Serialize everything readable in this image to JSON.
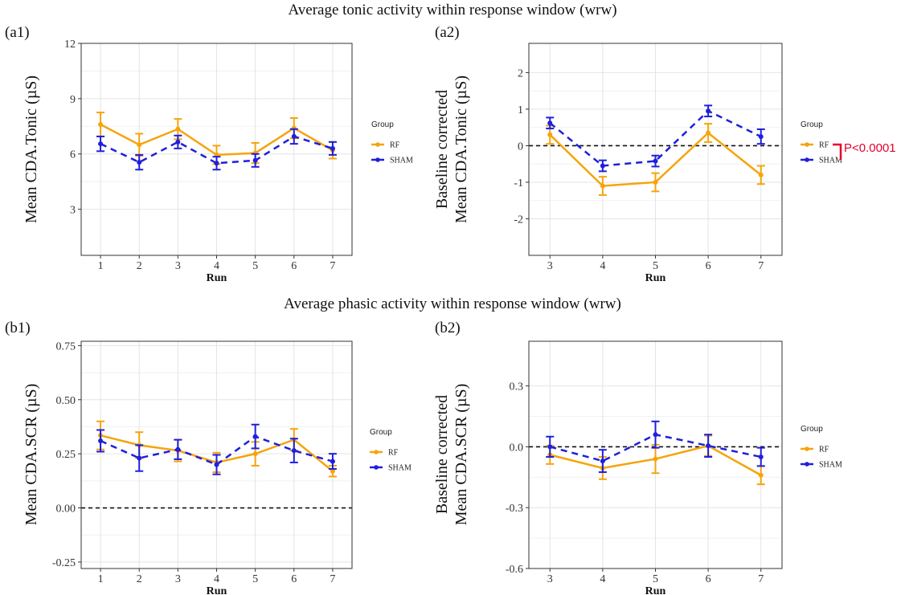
{
  "section_titles": {
    "tonic": "Average tonic activity within response window (wrw)",
    "phasic": "Average phasic activity within response window (wrw)"
  },
  "colors": {
    "RF": "#f5a40c",
    "SHAM": "#1f1fdc",
    "significance": "#e4002b"
  },
  "chart_data": [
    {
      "id": "a1",
      "panel_label": "(a1)",
      "type": "line",
      "xlabel": "Run",
      "ylabel": [
        "Mean CDA.Tonic (µS)"
      ],
      "x": [
        1,
        2,
        3,
        4,
        5,
        6,
        7
      ],
      "xlim": [
        0.5,
        7.5
      ],
      "ylim": [
        0.5,
        12
      ],
      "yticks": [
        3,
        6,
        9,
        12
      ],
      "xticks": [
        1,
        2,
        3,
        4,
        5,
        6,
        7
      ],
      "grid": true,
      "zero_line": false,
      "legend": {
        "title": "Group",
        "entries": [
          "RF",
          "SHAM"
        ],
        "position": "right"
      },
      "series": [
        {
          "name": "RF",
          "style": "solid",
          "values": [
            7.6,
            6.5,
            7.35,
            5.95,
            6.05,
            7.4,
            6.2
          ],
          "errors": [
            0.65,
            0.6,
            0.55,
            0.5,
            0.55,
            0.55,
            0.45
          ]
        },
        {
          "name": "SHAM",
          "style": "dashed",
          "values": [
            6.55,
            5.55,
            6.65,
            5.5,
            5.65,
            6.95,
            6.3
          ],
          "errors": [
            0.4,
            0.4,
            0.35,
            0.35,
            0.35,
            0.4,
            0.35
          ]
        }
      ]
    },
    {
      "id": "a2",
      "panel_label": "(a2)",
      "type": "line",
      "xlabel": "Run",
      "ylabel": [
        "Baseline  corrected",
        "Mean CDA.Tonic (µS)"
      ],
      "x": [
        3,
        4,
        5,
        6,
        7
      ],
      "xlim": [
        2.6,
        7.4
      ],
      "ylim": [
        -3,
        2.8
      ],
      "yticks": [
        -2,
        -1,
        0,
        1,
        2
      ],
      "xticks": [
        3,
        4,
        5,
        6,
        7
      ],
      "grid": true,
      "zero_line": true,
      "legend": {
        "title": "Group",
        "entries": [
          "RF",
          "SHAM"
        ],
        "position": "right"
      },
      "annotation": "P<0.0001",
      "series": [
        {
          "name": "RF",
          "style": "solid",
          "values": [
            0.3,
            -1.1,
            -1.0,
            0.35,
            -0.8
          ],
          "errors": [
            0.25,
            0.25,
            0.25,
            0.25,
            0.25
          ]
        },
        {
          "name": "SHAM",
          "style": "dashed",
          "values": [
            0.62,
            -0.55,
            -0.42,
            0.95,
            0.25
          ],
          "errors": [
            0.15,
            0.15,
            0.15,
            0.15,
            0.2
          ]
        }
      ]
    },
    {
      "id": "b1",
      "panel_label": "(b1)",
      "type": "line",
      "xlabel": "Run",
      "ylabel": [
        "Mean CDA.SCR (µS)"
      ],
      "x": [
        1,
        2,
        3,
        4,
        5,
        6,
        7
      ],
      "xlim": [
        0.5,
        7.5
      ],
      "ylim": [
        -0.28,
        0.77
      ],
      "yticks": [
        -0.25,
        0.0,
        0.25,
        0.5,
        0.75
      ],
      "yticklabels": [
        "-0.25",
        "0.00",
        "0.25",
        "0.50",
        "0.75"
      ],
      "xticks": [
        1,
        2,
        3,
        4,
        5,
        6,
        7
      ],
      "grid": true,
      "zero_line": true,
      "legend": {
        "title": "Group",
        "entries": [
          "RF",
          "SHAM"
        ],
        "position": "right"
      },
      "series": [
        {
          "name": "RF",
          "style": "solid",
          "values": [
            0.335,
            0.29,
            0.265,
            0.21,
            0.25,
            0.315,
            0.17
          ],
          "errors": [
            0.065,
            0.06,
            0.05,
            0.045,
            0.055,
            0.05,
            0.025
          ]
        },
        {
          "name": "SHAM",
          "style": "dashed",
          "values": [
            0.31,
            0.23,
            0.27,
            0.2,
            0.33,
            0.265,
            0.215
          ],
          "errors": [
            0.05,
            0.06,
            0.045,
            0.045,
            0.055,
            0.055,
            0.035
          ]
        }
      ]
    },
    {
      "id": "b2",
      "panel_label": "(b2)",
      "type": "line",
      "xlabel": "Run",
      "ylabel": [
        "Baseline  corrected",
        "Mean CDA.SCR (µS)"
      ],
      "x": [
        3,
        4,
        5,
        6,
        7
      ],
      "xlim": [
        2.6,
        7.4
      ],
      "ylim": [
        -0.6,
        0.52
      ],
      "yticks": [
        -0.6,
        -0.3,
        0.0,
        0.3
      ],
      "yticklabels": [
        "-0.6",
        "-0.3",
        "0.0",
        "0.3"
      ],
      "xticks": [
        3,
        4,
        5,
        6,
        7
      ],
      "grid": true,
      "zero_line": true,
      "legend": {
        "title": "Group",
        "entries": [
          "RF",
          "SHAM"
        ],
        "position": "right"
      },
      "series": [
        {
          "name": "RF",
          "style": "solid",
          "values": [
            -0.04,
            -0.105,
            -0.06,
            0.005,
            -0.14
          ],
          "errors": [
            0.045,
            0.055,
            0.07,
            0.05,
            0.045
          ]
        },
        {
          "name": "SHAM",
          "style": "dashed",
          "values": [
            0.0,
            -0.07,
            0.06,
            0.005,
            -0.05
          ],
          "errors": [
            0.05,
            0.055,
            0.065,
            0.055,
            0.045
          ]
        }
      ]
    }
  ]
}
